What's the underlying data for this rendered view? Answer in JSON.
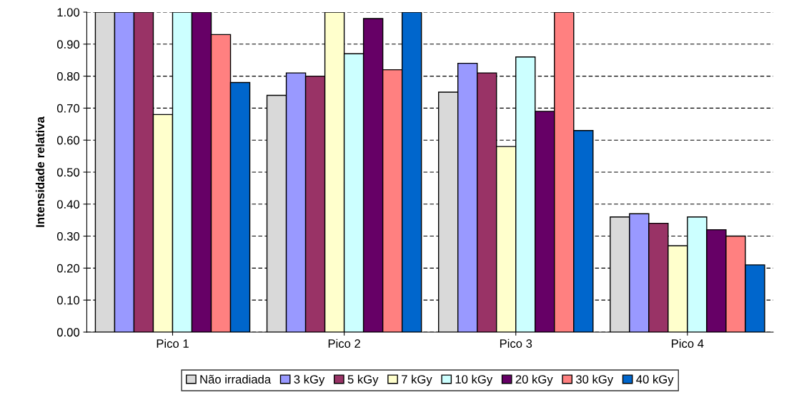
{
  "chart_data": {
    "type": "bar",
    "ylabel": "Intensidade relativa",
    "categories": [
      "Pico 1",
      "Pico 2",
      "Pico 3",
      "Pico 4"
    ],
    "series": [
      {
        "name": "Não irradiada",
        "color": "#d9d9d9",
        "values": [
          1.0,
          0.74,
          0.75,
          0.36
        ]
      },
      {
        "name": "3 kGy",
        "color": "#9999ff",
        "values": [
          1.0,
          0.81,
          0.84,
          0.37
        ]
      },
      {
        "name": "5 kGy",
        "color": "#993366",
        "values": [
          1.0,
          0.8,
          0.81,
          0.34
        ]
      },
      {
        "name": "7 kGy",
        "color": "#ffffcc",
        "values": [
          0.68,
          1.0,
          0.58,
          0.27
        ]
      },
      {
        "name": "10 kGy",
        "color": "#ccffff",
        "values": [
          1.0,
          0.87,
          0.86,
          0.36
        ]
      },
      {
        "name": "20 kGy",
        "color": "#660066",
        "values": [
          1.0,
          0.98,
          0.69,
          0.32
        ]
      },
      {
        "name": "30 kGy",
        "color": "#ff8080",
        "values": [
          0.93,
          0.82,
          1.0,
          0.3
        ]
      },
      {
        "name": "40 kGy",
        "color": "#0066cc",
        "values": [
          0.78,
          1.0,
          0.63,
          0.21
        ]
      }
    ],
    "ylim": [
      0,
      1
    ],
    "yticks": [
      {
        "value": 0,
        "label": "0.00"
      },
      {
        "value": 0.1,
        "label": "0.10"
      },
      {
        "value": 0.2,
        "label": "0.20"
      },
      {
        "value": 0.3,
        "label": "0.30"
      },
      {
        "value": 0.4,
        "label": "0.40"
      },
      {
        "value": 0.5,
        "label": "0.50"
      },
      {
        "value": 0.6,
        "label": "0.60"
      },
      {
        "value": 0.7,
        "label": "0.70"
      },
      {
        "value": 0.8,
        "label": "0.80"
      },
      {
        "value": 0.9,
        "label": "0.90"
      },
      {
        "value": 1,
        "label": "1.00"
      }
    ],
    "grid": "y",
    "legend": "bottom"
  }
}
